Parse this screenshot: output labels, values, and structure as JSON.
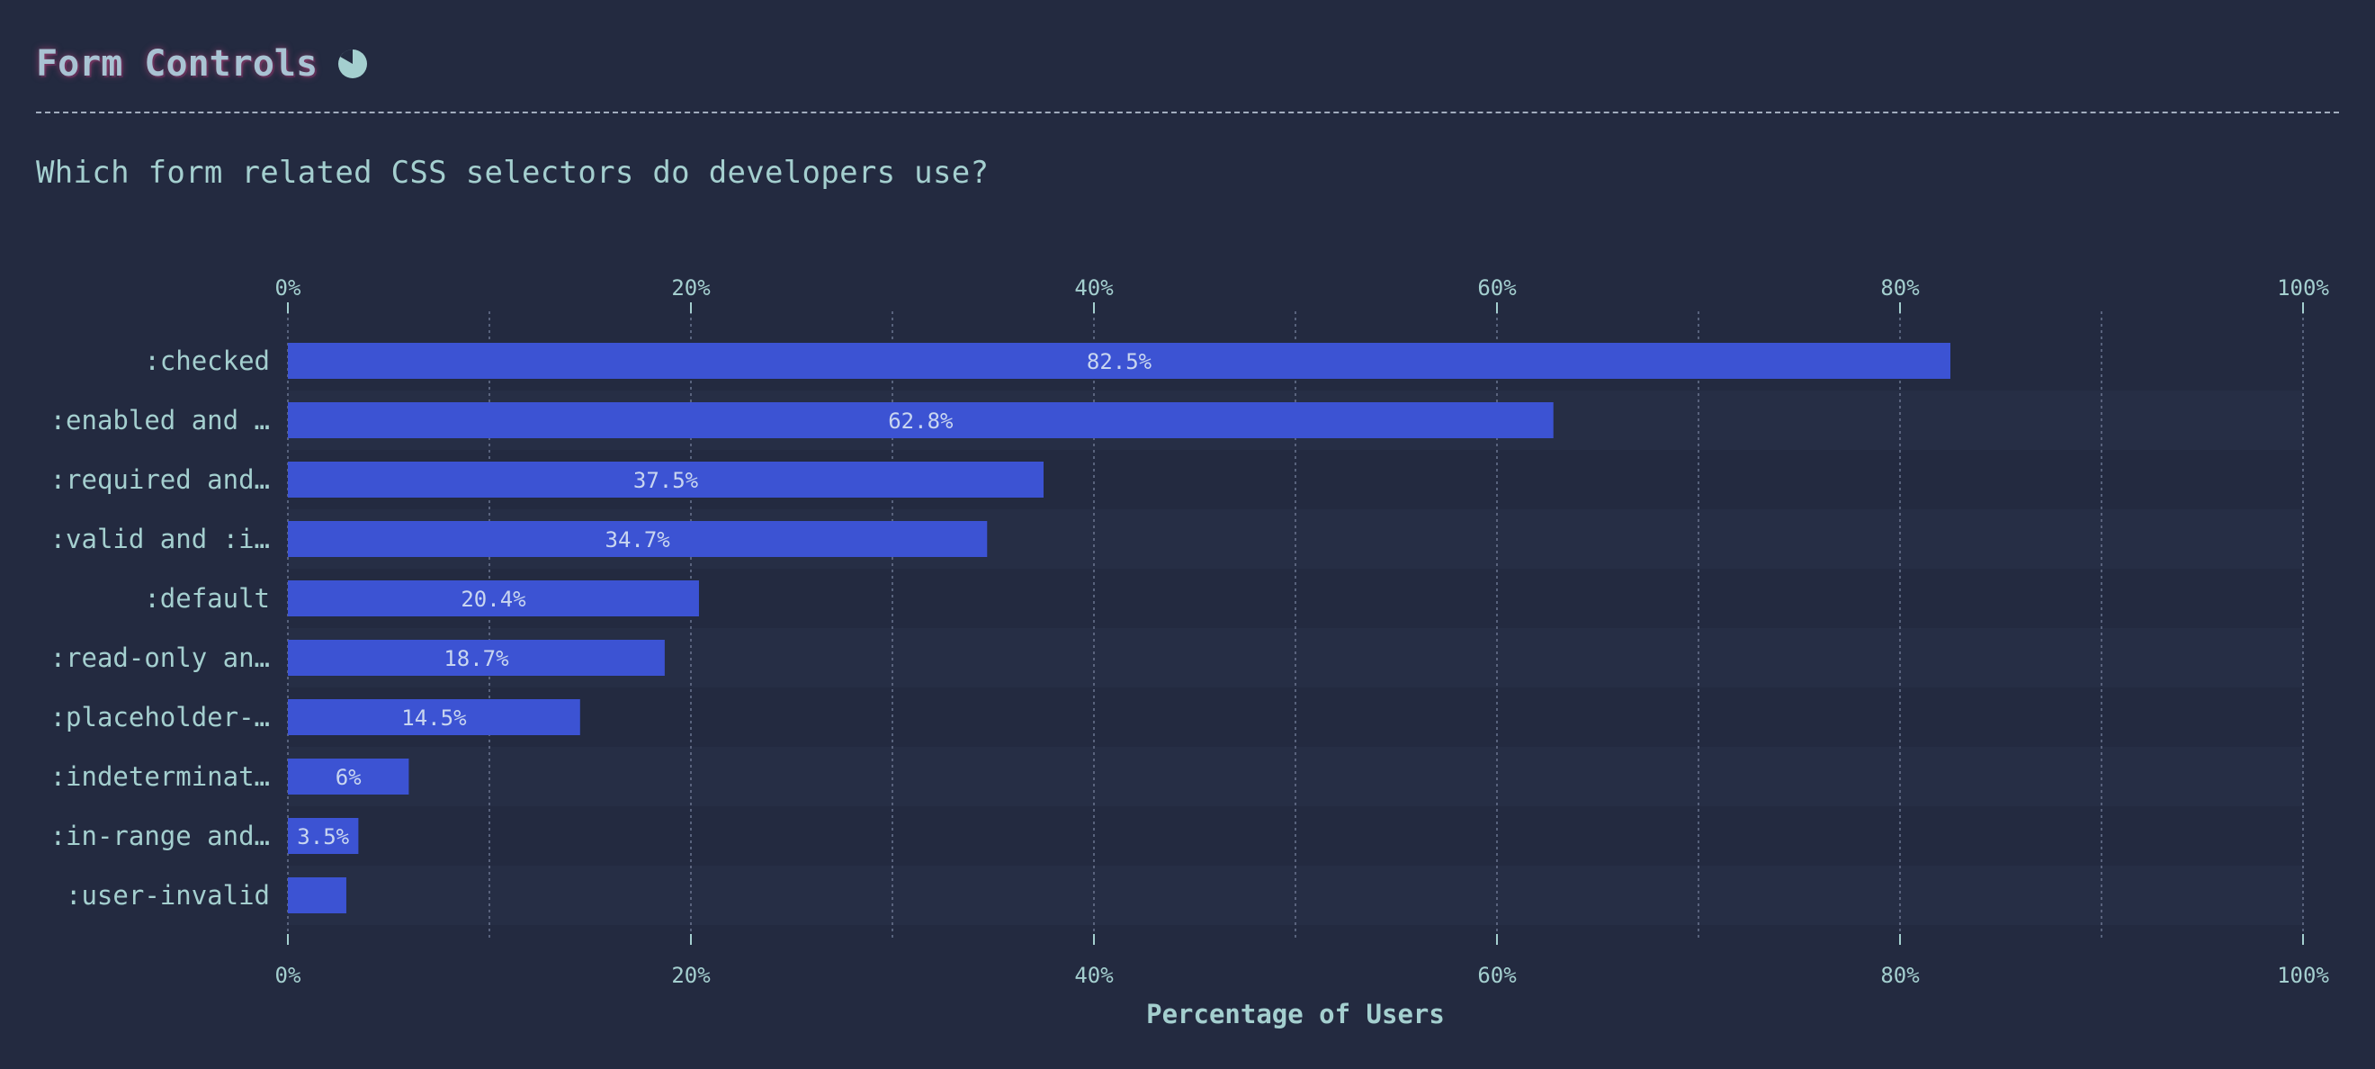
{
  "header": {
    "title": "Form Controls",
    "icon": "pie-chart-icon"
  },
  "question": "Which form related CSS selectors do developers use?",
  "colors": {
    "background": "#232a40",
    "stripe": "#262e45",
    "bar": "#3c53d3",
    "text": "#a4cfcf",
    "grid": "#6b7590"
  },
  "chart_data": {
    "type": "bar",
    "orientation": "horizontal",
    "categories": [
      ":checked",
      ":enabled and …",
      ":required and…",
      ":valid and :i…",
      ":default",
      ":read-only an…",
      ":placeholder-…",
      ":indeterminat…",
      ":in-range and…",
      ":user-invalid"
    ],
    "values": [
      82.5,
      62.8,
      37.5,
      34.7,
      20.4,
      18.7,
      14.5,
      6,
      3.5,
      2.9
    ],
    "value_labels": [
      "82.5%",
      "62.8%",
      "37.5%",
      "34.7%",
      "20.4%",
      "18.7%",
      "14.5%",
      "6%",
      "3.5%",
      ""
    ],
    "xlabel": "Percentage of Users",
    "xlim": [
      0,
      100
    ],
    "ticks": [
      0,
      20,
      40,
      60,
      80,
      100
    ],
    "tick_labels": [
      "0%",
      "20%",
      "40%",
      "60%",
      "80%",
      "100%"
    ],
    "minor_grid": [
      10,
      30,
      50,
      70,
      90
    ],
    "grid": true
  }
}
